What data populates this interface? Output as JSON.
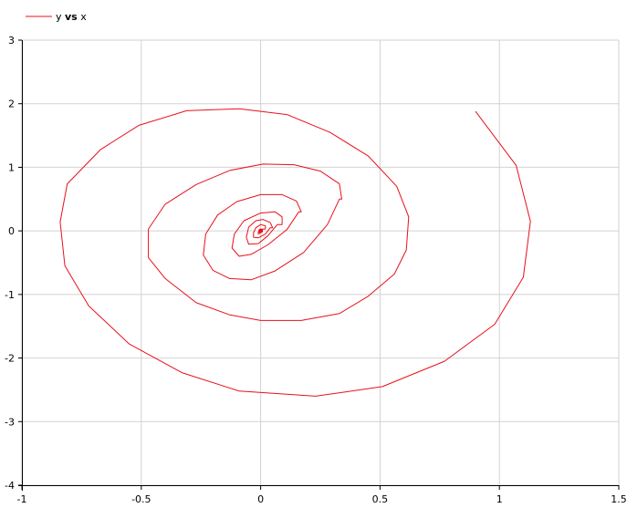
{
  "legend": {
    "series_label_y": "y",
    "series_label_vs": "vs",
    "series_label_x": "x",
    "color": "#e8101a"
  },
  "chart_data": {
    "type": "line",
    "title": "",
    "xlabel": "",
    "ylabel": "",
    "xlim": [
      -1,
      1.5
    ],
    "ylim": [
      -4,
      3
    ],
    "grid": true,
    "legend_position": "top-left",
    "x_ticks": [
      -1,
      -0.5,
      0,
      0.5,
      1,
      1.5
    ],
    "x_tick_labels": [
      "-1",
      "-0.5",
      "0",
      "0.5",
      "1",
      "1.5"
    ],
    "y_ticks": [
      -4,
      -3,
      -2,
      -1,
      0,
      1,
      2,
      3
    ],
    "y_tick_labels": [
      "-4",
      "-3",
      "-2",
      "-1",
      "0",
      "1",
      "2",
      "3"
    ],
    "series": [
      {
        "name": "y vs x",
        "color": "#e8101a",
        "x": [
          0.9,
          1.07,
          1.13,
          1.1,
          0.98,
          0.77,
          0.51,
          0.23,
          -0.09,
          -0.33,
          -0.55,
          -0.72,
          -0.82,
          -0.84,
          -0.81,
          -0.67,
          -0.51,
          -0.31,
          -0.09,
          0.11,
          0.29,
          0.45,
          0.57,
          0.62,
          0.62,
          0.61,
          0.56,
          0.45,
          0.33,
          0.17,
          0.0,
          -0.13,
          -0.27,
          -0.4,
          -0.47,
          -0.47,
          -0.4,
          -0.27,
          -0.13,
          0.01,
          0.14,
          0.25,
          0.33,
          0.34,
          0.33,
          0.28,
          0.18,
          0.06,
          -0.04,
          -0.13,
          -0.2,
          -0.24,
          -0.23,
          -0.18,
          -0.1,
          0.0,
          0.09,
          0.15,
          0.17,
          0.16,
          0.11,
          0.03,
          -0.04,
          -0.09,
          -0.12,
          -0.11,
          -0.07,
          0.0,
          0.06,
          0.09,
          0.09,
          0.07,
          0.03,
          -0.01,
          -0.05,
          -0.06,
          -0.05,
          -0.02,
          0.01,
          0.04,
          0.05,
          0.04,
          0.02,
          -0.01,
          -0.03,
          -0.03,
          -0.02,
          0.0,
          0.02,
          0.02,
          0.01,
          0.0,
          -0.01,
          -0.01,
          0.0,
          0.01,
          0.005,
          0.0
        ],
        "y": [
          1.88,
          1.03,
          0.15,
          -0.73,
          -1.47,
          -2.05,
          -2.45,
          -2.6,
          -2.52,
          -2.23,
          -1.78,
          -1.18,
          -0.55,
          0.14,
          0.74,
          1.28,
          1.66,
          1.89,
          1.92,
          1.83,
          1.55,
          1.18,
          0.7,
          0.22,
          0.22,
          -0.3,
          -0.68,
          -1.03,
          -1.3,
          -1.41,
          -1.41,
          -1.32,
          -1.13,
          -0.75,
          -0.42,
          0.03,
          0.42,
          0.73,
          0.95,
          1.05,
          1.04,
          0.94,
          0.74,
          0.5,
          0.5,
          0.1,
          -0.34,
          -0.63,
          -0.77,
          -0.75,
          -0.62,
          -0.38,
          -0.05,
          0.25,
          0.46,
          0.57,
          0.57,
          0.47,
          0.3,
          0.3,
          0.02,
          -0.22,
          -0.37,
          -0.4,
          -0.27,
          -0.05,
          0.16,
          0.28,
          0.3,
          0.22,
          0.1,
          0.1,
          -0.08,
          -0.2,
          -0.21,
          -0.1,
          0.06,
          0.16,
          0.18,
          0.13,
          0.05,
          0.05,
          -0.05,
          -0.11,
          -0.1,
          -0.03,
          0.05,
          0.1,
          0.08,
          0.03,
          0.03,
          -0.03,
          -0.05,
          -0.02,
          0.02,
          0.03,
          0.01,
          0.0
        ]
      }
    ]
  }
}
